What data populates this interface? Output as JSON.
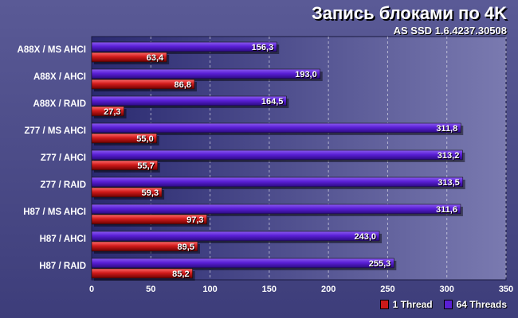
{
  "chart_data": {
    "type": "bar",
    "orientation": "horizontal",
    "title": "Запись блоками по 4K",
    "subtitle": "AS SSD 1.6.4237.30508",
    "categories": [
      "A88X / MS AHCI",
      "A88X / AHCI",
      "A88X / RAID",
      "Z77 / MS AHCI",
      "Z77 / AHCI",
      "Z77 / RAID",
      "H87 / MS AHCI",
      "H87 / AHCI",
      "H87 / RAID"
    ],
    "series": [
      {
        "name": "64 Threads",
        "color": "#5a1fd6",
        "values": [
          156.3,
          193.0,
          164.5,
          311.8,
          313.2,
          313.5,
          311.6,
          243.0,
          255.3
        ],
        "labels": [
          "156,3",
          "193,0",
          "164,5",
          "311,8",
          "313,2",
          "313,5",
          "311,6",
          "243,0",
          "255,3"
        ]
      },
      {
        "name": "1 Thread",
        "color": "#cc1a1a",
        "values": [
          63.4,
          86.8,
          27.3,
          55.0,
          55.7,
          59.3,
          97.3,
          89.5,
          85.2
        ],
        "labels": [
          "63,4",
          "86,8",
          "27,3",
          "55,0",
          "55,7",
          "59,3",
          "97,3",
          "89,5",
          "85,2"
        ]
      }
    ],
    "xlim": [
      0,
      350
    ],
    "xticks": [
      0,
      50,
      100,
      150,
      200,
      250,
      300,
      350
    ],
    "grid": true,
    "legend_position": "bottom-right"
  }
}
